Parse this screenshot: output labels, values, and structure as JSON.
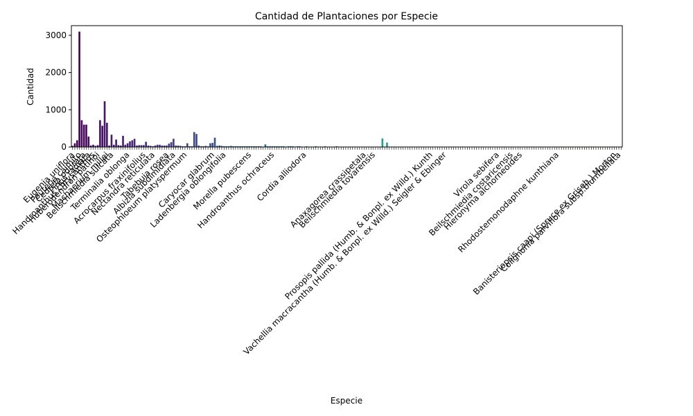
{
  "chart_data": {
    "type": "bar",
    "title": "Cantidad de Plantaciones por Especie",
    "xlabel": "Especie",
    "ylabel": "Cantidad",
    "ylim": [
      0,
      3260
    ],
    "yticks": [
      0,
      1000,
      2000,
      3000
    ],
    "colormap": [
      "#440154",
      "#482878",
      "#3e4989",
      "#31688e",
      "#26828e",
      "#1f9e89",
      "#35b779",
      "#6ece58",
      "#b5de2b",
      "#fde725"
    ],
    "categories": [
      null,
      "Eugenia uniflora",
      null,
      null,
      "Pouteria caimito",
      null,
      "Cedrela odorata",
      null,
      "Pinus radiata",
      null,
      "Handroanthus chrysanthus",
      null,
      "Huberodendron patinoi",
      null,
      null,
      null,
      "Machaerium millei",
      null,
      "Beilschmiedia sulcata",
      null,
      null,
      null,
      null,
      null,
      null,
      "Terminalia oblonga",
      null,
      null,
      null,
      null,
      null,
      null,
      "Acrocarpus fraxinifolius",
      null,
      null,
      null,
      "Nectandra reticulata",
      null,
      null,
      null,
      null,
      null,
      "Tabebuia rosea",
      null,
      null,
      "Albizia subdimidiata",
      null,
      null,
      null,
      null,
      "Osteophloeum platyspermum",
      null,
      null,
      null,
      null,
      null,
      null,
      null,
      null,
      null,
      null,
      null,
      "Caryocar glabrum",
      null,
      null,
      null,
      null,
      "Ladenbergia oblongifolia",
      null,
      null,
      null,
      null,
      null,
      null,
      null,
      null,
      null,
      null,
      "Morella pubescens",
      null,
      null,
      null,
      null,
      null,
      null,
      null,
      null,
      null,
      "Handroanthus ochraceus",
      null,
      null,
      null,
      null,
      null,
      null,
      null,
      null,
      null,
      null,
      null,
      null,
      null,
      "Cordia alliodora",
      null,
      null,
      null,
      null,
      null,
      null,
      null,
      null,
      null,
      null,
      null,
      null,
      null,
      null,
      null,
      null,
      null,
      null,
      null,
      null,
      null,
      null,
      null,
      null,
      null,
      "Anaxagorea crassipetala",
      null,
      null,
      null,
      "Beilschmiedia tovarensis",
      null,
      null,
      null,
      null,
      null,
      null,
      null,
      null,
      null,
      null,
      null,
      null,
      null,
      null,
      null,
      null,
      null,
      null,
      null,
      null,
      null,
      null,
      null,
      null,
      "Prosopis pallida (Humb. & Bonpl. ex Willd.) Kunth",
      null,
      null,
      null,
      null,
      null,
      "Vachellia macracantha (Humb. & Bonpl. ex Willd.) Seigler & Ebinger",
      null,
      null,
      null,
      null,
      null,
      null,
      null,
      null,
      null,
      null,
      null,
      null,
      null,
      null,
      null,
      null,
      null,
      null,
      null,
      null,
      null,
      null,
      "Virola sebifera",
      null,
      null,
      null,
      null,
      null,
      "Beilschmiedia costaricensis",
      null,
      null,
      null,
      "Hieronyma alchorneoides",
      null,
      null,
      null,
      null,
      null,
      null,
      null,
      null,
      null,
      null,
      null,
      null,
      null,
      null,
      null,
      "Rhodostemonodaphne kunthiana",
      null,
      null,
      null,
      null,
      null,
      null,
      null,
      null,
      null,
      null,
      null,
      null,
      null,
      null,
      null,
      null,
      null,
      null,
      null,
      null,
      null,
      null,
      null,
      null,
      "Banisteriopsis caapi (Spruce ex Griseb.) Morton",
      null,
      "Colignonia parviflora subsp.biumbellata"
    ],
    "values": [
      30,
      100,
      180,
      3100,
      720,
      600,
      600,
      280,
      40,
      60,
      30,
      50,
      720,
      570,
      1230,
      650,
      40,
      330,
      60,
      200,
      50,
      40,
      300,
      60,
      100,
      150,
      180,
      220,
      40,
      50,
      50,
      50,
      140,
      40,
      30,
      20,
      40,
      60,
      60,
      40,
      40,
      40,
      90,
      130,
      220,
      40,
      40,
      30,
      20,
      20,
      100,
      20,
      20,
      400,
      350,
      40,
      20,
      20,
      30,
      20,
      100,
      110,
      250,
      30,
      40,
      30,
      20,
      20,
      20,
      30,
      20,
      20,
      20,
      20,
      20,
      20,
      20,
      20,
      20,
      20,
      20,
      20,
      20,
      10,
      70,
      20,
      20,
      20,
      20,
      20,
      20,
      20,
      20,
      10,
      20,
      20,
      20,
      10,
      20,
      20,
      10,
      10,
      20,
      10,
      10,
      10,
      20,
      10,
      10,
      10,
      20,
      10,
      10,
      10,
      10,
      20,
      10,
      10,
      10,
      10,
      10,
      10,
      10,
      10,
      10,
      10,
      10,
      10,
      10,
      10,
      10,
      10,
      10,
      10,
      10,
      230,
      10,
      120,
      10,
      10,
      10,
      10,
      10,
      10,
      10,
      10,
      10,
      10,
      10,
      10,
      10,
      10,
      10,
      10,
      10,
      10,
      10,
      10,
      10,
      10,
      10,
      10,
      10,
      10,
      10,
      10,
      10,
      10,
      10,
      10,
      10,
      10,
      10,
      10,
      10,
      10,
      10,
      10,
      10,
      10,
      10,
      10,
      10,
      10,
      10,
      10,
      10,
      10,
      10,
      10,
      10,
      10,
      10,
      10,
      10,
      10,
      10,
      10,
      10,
      10,
      10,
      10,
      10,
      10,
      10,
      10,
      10,
      10,
      10,
      10,
      10,
      10,
      10,
      10,
      10,
      10,
      10,
      10,
      10,
      10,
      10,
      10,
      10,
      10,
      10,
      10,
      10,
      10,
      10,
      10,
      10,
      10,
      10,
      10,
      10,
      10,
      10,
      10,
      10,
      10
    ]
  }
}
